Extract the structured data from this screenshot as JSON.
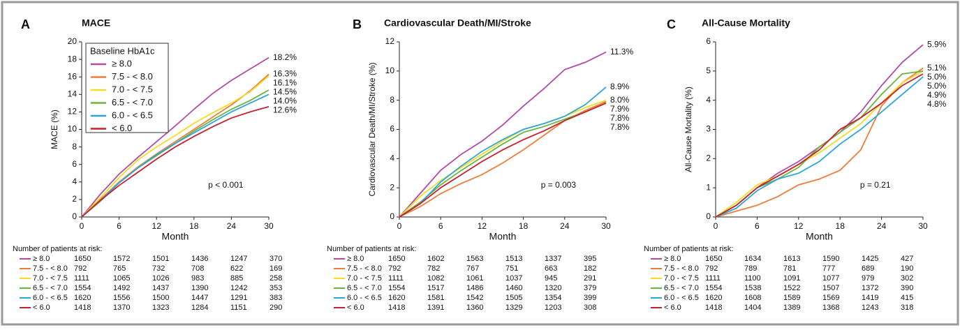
{
  "chart_data": [
    {
      "type": "line",
      "panel": "A",
      "title": "MACE",
      "xlabel": "Month",
      "ylabel": "MACE (%)",
      "legend": "upper left",
      "legend_title": "Baseline HbA1c",
      "annotation": "p < 0.001",
      "x": [
        0,
        3,
        6,
        9,
        12,
        15,
        18,
        21,
        24,
        27,
        30
      ],
      "xlim": [
        0,
        30
      ],
      "xticks": [
        0,
        6,
        12,
        18,
        24,
        30
      ],
      "ylim": [
        0,
        20
      ],
      "yticks": [
        0,
        2,
        4,
        6,
        8,
        10,
        12,
        14,
        16,
        18,
        20
      ],
      "series": [
        {
          "name": "≥ 8.0",
          "color": "#b24aa8",
          "values": [
            0,
            2.6,
            4.9,
            6.8,
            8.6,
            10.4,
            12.3,
            14.1,
            15.6,
            16.9,
            18.2
          ],
          "value_labels": [
            null,
            null,
            null,
            null,
            null,
            null,
            null,
            null,
            null,
            null,
            "18.2%"
          ]
        },
        {
          "name": "7.5 - < 8.0",
          "color": "#f07c3a",
          "values": [
            0,
            2.0,
            4.0,
            5.7,
            7.2,
            8.6,
            10.0,
            11.4,
            12.8,
            14.4,
            16.3
          ],
          "value_labels": [
            null,
            null,
            null,
            null,
            null,
            null,
            null,
            null,
            null,
            null,
            "16.3%"
          ]
        },
        {
          "name": "7.0 - < 7.5",
          "color": "#f2dc22",
          "values": [
            0,
            2.2,
            4.5,
            6.5,
            8.0,
            9.3,
            10.7,
            11.9,
            13.0,
            14.3,
            16.1
          ],
          "value_labels": [
            null,
            null,
            null,
            null,
            null,
            null,
            null,
            null,
            null,
            null,
            "16.1%"
          ]
        },
        {
          "name": "6.5 - < 7.0",
          "color": "#6ab43f",
          "values": [
            0,
            1.8,
            3.9,
            5.6,
            7.0,
            8.4,
            9.8,
            11.1,
            12.3,
            13.3,
            14.5
          ],
          "value_labels": [
            null,
            null,
            null,
            null,
            null,
            null,
            null,
            null,
            null,
            null,
            "14.5%"
          ]
        },
        {
          "name": "6.0 - < 6.5",
          "color": "#2aa6dc",
          "values": [
            0,
            1.9,
            3.9,
            5.6,
            7.1,
            8.4,
            9.6,
            10.8,
            12.0,
            13.0,
            14.0
          ],
          "value_labels": [
            null,
            null,
            null,
            null,
            null,
            null,
            null,
            null,
            null,
            null,
            "14.0%"
          ]
        },
        {
          "name": "< 6.0",
          "color": "#c8202c",
          "values": [
            0,
            1.9,
            3.6,
            5.1,
            6.6,
            8.0,
            9.2,
            10.3,
            11.3,
            12.0,
            12.6
          ],
          "value_labels": [
            null,
            null,
            null,
            null,
            null,
            null,
            null,
            null,
            null,
            null,
            "12.6%"
          ]
        }
      ],
      "risk_table": {
        "title": "Number of patients at risk:",
        "rows": [
          [
            1650,
            1572,
            1501,
            1436,
            1247,
            370
          ],
          [
            792,
            765,
            732,
            708,
            622,
            169
          ],
          [
            1111,
            1065,
            1026,
            983,
            885,
            258
          ],
          [
            1554,
            1492,
            1437,
            1390,
            1242,
            353
          ],
          [
            1620,
            1556,
            1500,
            1447,
            1291,
            383
          ],
          [
            1418,
            1370,
            1323,
            1284,
            1151,
            290
          ]
        ]
      }
    },
    {
      "type": "line",
      "panel": "B",
      "title": "Cardiovascular Death/MI/Stroke",
      "xlabel": "Month",
      "ylabel": "Cardiovascular Death/MI/Stroke (%)",
      "annotation": "p = 0.003",
      "x": [
        0,
        3,
        6,
        9,
        12,
        15,
        18,
        21,
        24,
        27,
        30
      ],
      "xlim": [
        0,
        30
      ],
      "xticks": [
        0,
        6,
        12,
        18,
        24,
        30
      ],
      "ylim": [
        0,
        12
      ],
      "yticks": [
        0,
        2,
        4,
        6,
        8,
        10,
        12
      ],
      "series": [
        {
          "name": "≥ 8.0",
          "color": "#b24aa8",
          "values": [
            0,
            1.6,
            3.2,
            4.3,
            5.2,
            6.3,
            7.6,
            8.8,
            10.1,
            10.6,
            11.3
          ],
          "value_labels": [
            null,
            null,
            null,
            null,
            null,
            null,
            null,
            null,
            null,
            null,
            "11.3%"
          ]
        },
        {
          "name": "7.5 - < 8.0",
          "color": "#f07c3a",
          "values": [
            0,
            0.7,
            1.6,
            2.3,
            2.9,
            3.7,
            4.6,
            5.6,
            6.6,
            7.3,
            7.9
          ],
          "value_labels": [
            null,
            null,
            null,
            null,
            null,
            null,
            null,
            null,
            null,
            null,
            "7.9%"
          ]
        },
        {
          "name": "7.0 - < 7.5",
          "color": "#f2dc22",
          "values": [
            0,
            1.4,
            2.5,
            3.4,
            4.3,
            5.2,
            6.0,
            6.4,
            6.9,
            7.5,
            8.0
          ],
          "value_labels": [
            null,
            null,
            null,
            null,
            null,
            null,
            null,
            null,
            null,
            null,
            "8.0%"
          ]
        },
        {
          "name": "6.5 - < 7.0",
          "color": "#6ab43f",
          "values": [
            0,
            1.0,
            2.2,
            3.2,
            4.1,
            5.0,
            5.8,
            6.2,
            6.7,
            7.2,
            7.8
          ],
          "value_labels": [
            null,
            null,
            null,
            null,
            null,
            null,
            null,
            null,
            null,
            null,
            "7.8%"
          ]
        },
        {
          "name": "6.0 - < 6.5",
          "color": "#2aa6dc",
          "values": [
            0,
            0.9,
            2.4,
            3.5,
            4.5,
            5.3,
            6.0,
            6.4,
            6.9,
            7.7,
            8.9
          ],
          "value_labels": [
            null,
            null,
            null,
            null,
            null,
            null,
            null,
            null,
            null,
            null,
            "8.9%"
          ]
        },
        {
          "name": "< 6.0",
          "color": "#c8202c",
          "values": [
            0,
            0.9,
            2.0,
            2.9,
            3.8,
            4.6,
            5.3,
            5.9,
            6.6,
            7.2,
            7.8
          ],
          "value_labels": [
            null,
            null,
            null,
            null,
            null,
            null,
            null,
            null,
            null,
            null,
            "7.8%"
          ]
        }
      ],
      "risk_table": {
        "title": "Number of patients at risk:",
        "rows": [
          [
            1650,
            1602,
            1563,
            1513,
            1337,
            395
          ],
          [
            792,
            782,
            767,
            751,
            663,
            182
          ],
          [
            1111,
            1082,
            1061,
            1037,
            945,
            291
          ],
          [
            1554,
            1517,
            1486,
            1460,
            1320,
            379
          ],
          [
            1620,
            1581,
            1542,
            1505,
            1354,
            399
          ],
          [
            1418,
            1391,
            1360,
            1329,
            1203,
            308
          ]
        ]
      }
    },
    {
      "type": "line",
      "panel": "C",
      "title": "All-Cause Mortality",
      "xlabel": "Month",
      "ylabel": "All-Cause Mortality (%)",
      "annotation": "p = 0.21",
      "x": [
        0,
        3,
        6,
        9,
        12,
        15,
        18,
        21,
        24,
        27,
        30
      ],
      "xlim": [
        0,
        30
      ],
      "xticks": [
        0,
        6,
        12,
        18,
        24,
        30
      ],
      "ylim": [
        0,
        6
      ],
      "yticks": [
        0,
        1,
        2,
        3,
        4,
        5,
        6
      ],
      "series": [
        {
          "name": "≥ 8.0",
          "color": "#b24aa8",
          "values": [
            0,
            0.4,
            1.0,
            1.5,
            1.9,
            2.4,
            2.9,
            3.6,
            4.5,
            5.3,
            5.9
          ],
          "value_labels": [
            null,
            null,
            null,
            null,
            null,
            null,
            null,
            null,
            null,
            null,
            "5.9%"
          ]
        },
        {
          "name": "7.5 - < 8.0",
          "color": "#f07c3a",
          "values": [
            0,
            0.2,
            0.4,
            0.7,
            1.1,
            1.3,
            1.6,
            2.3,
            3.8,
            4.6,
            5.1
          ],
          "value_labels": [
            null,
            null,
            null,
            null,
            null,
            null,
            null,
            null,
            null,
            null,
            "5.1%"
          ]
        },
        {
          "name": "7.0 - < 7.5",
          "color": "#f2dc22",
          "values": [
            0,
            0.5,
            1.1,
            1.4,
            1.8,
            2.2,
            2.7,
            3.2,
            3.9,
            4.6,
            5.0
          ],
          "value_labels": [
            null,
            null,
            null,
            null,
            null,
            null,
            null,
            null,
            null,
            null,
            "5.0%"
          ]
        },
        {
          "name": "6.5 - < 7.0",
          "color": "#6ab43f",
          "values": [
            0,
            0.4,
            1.0,
            1.3,
            1.7,
            2.4,
            2.9,
            3.4,
            4.2,
            4.9,
            5.0
          ],
          "value_labels": [
            null,
            null,
            null,
            null,
            null,
            null,
            null,
            null,
            null,
            null,
            "5.0%"
          ]
        },
        {
          "name": "6.0 - < 6.5",
          "color": "#2aa6dc",
          "values": [
            0,
            0.3,
            0.9,
            1.3,
            1.5,
            1.9,
            2.5,
            3.0,
            3.6,
            4.2,
            4.8
          ],
          "value_labels": [
            null,
            null,
            null,
            null,
            null,
            null,
            null,
            null,
            null,
            null,
            "4.8%"
          ]
        },
        {
          "name": "< 6.0",
          "color": "#c8202c",
          "values": [
            0,
            0.4,
            1.0,
            1.4,
            1.8,
            2.3,
            3.0,
            3.4,
            3.9,
            4.5,
            4.9
          ],
          "value_labels": [
            null,
            null,
            null,
            null,
            null,
            null,
            null,
            null,
            null,
            null,
            "4.9%"
          ]
        }
      ],
      "risk_table": {
        "title": "Number of patients at risk:",
        "rows": [
          [
            1650,
            1634,
            1613,
            1590,
            1425,
            427
          ],
          [
            792,
            789,
            781,
            777,
            689,
            190
          ],
          [
            1111,
            1100,
            1091,
            1077,
            979,
            302
          ],
          [
            1554,
            1538,
            1522,
            1507,
            1372,
            390
          ],
          [
            1620,
            1608,
            1589,
            1569,
            1419,
            415
          ],
          [
            1418,
            1404,
            1389,
            1368,
            1243,
            318
          ]
        ]
      }
    }
  ]
}
